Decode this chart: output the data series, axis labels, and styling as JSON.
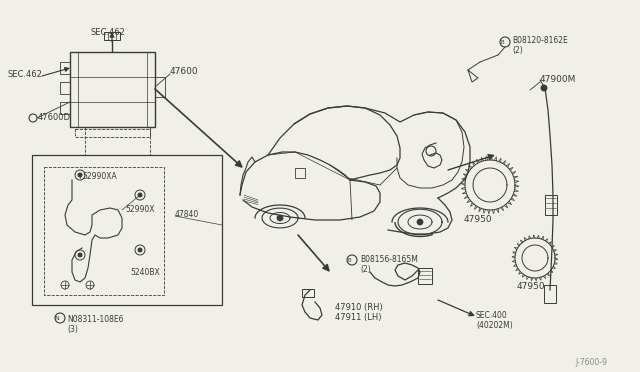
{
  "bg_color": "#f0efe8",
  "line_color": "#3a3a3a",
  "labels": {
    "SEC462_top": "SEC.462",
    "SEC462_left": "SEC.462",
    "part47600": "47600",
    "part47600D": "47600D",
    "part52990XA": "52990XA",
    "part52990X": "52990X",
    "part47840": "47840",
    "part5240BX": "5240BX",
    "boltN": "N08311-108E6\n(3)",
    "boltB1": "B08120-8162E\n(2)",
    "boltB2": "B08156-8165M\n(2)",
    "part47900M": "47900M",
    "part47950_top": "47950",
    "part47950_bot": "47950",
    "part47910": "47910 (RH)\n47911 (LH)",
    "partSEC400": "SEC.400\n(40202M)"
  },
  "watermark": "J-7600-9"
}
